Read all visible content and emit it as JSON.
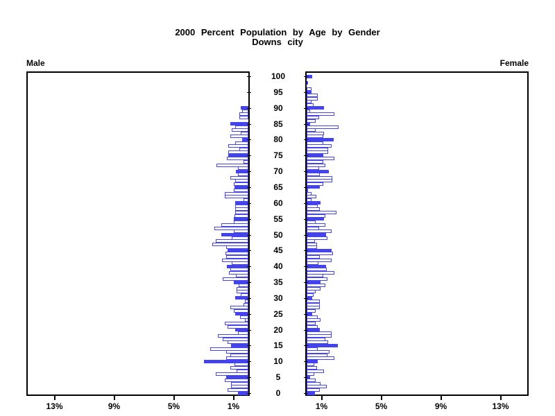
{
  "title": {
    "line1": "2000 Percent Population by Age by Gender",
    "line2": "Downs city"
  },
  "labels": {
    "male": "Male",
    "female": "Female"
  },
  "axis": {
    "x_ticks": [
      1,
      5,
      9,
      13
    ],
    "x_tick_suffix": "%",
    "x_max_percent": 15,
    "age_ticks": [
      0,
      5,
      10,
      15,
      20,
      25,
      30,
      35,
      40,
      45,
      50,
      55,
      60,
      65,
      70,
      75,
      80,
      85,
      90,
      95,
      100
    ]
  },
  "colors": {
    "bar_accent": "#4444ee",
    "frame": "#000000",
    "background": "#ffffff",
    "text": "#000000"
  },
  "chart_data": {
    "type": "bar",
    "subtype": "population-pyramid",
    "title": "2000 Percent Population by Age by Gender",
    "subtitle": "Downs city",
    "units": "percent of total population",
    "age_start": 0,
    "age_step": 1,
    "age_end": 100,
    "filled_bar_rule": "ages divisible by 5 are solid blue; other ages are white with blue outline",
    "xlim": [
      0,
      15
    ],
    "x_tick_values_percent": [
      1,
      5,
      9,
      13
    ],
    "legend_position": "none",
    "grid": false,
    "series": [
      {
        "name": "Male",
        "side": "left",
        "values": [
          0.7,
          1.4,
          1.15,
          1.15,
          1.6,
          1.5,
          2.2,
          0.8,
          1.2,
          0.95,
          3.0,
          1.5,
          1.2,
          1.5,
          2.55,
          1.15,
          1.4,
          1.7,
          2.05,
          0.7,
          0.9,
          1.4,
          1.6,
          0.25,
          0.55,
          0.9,
          1.0,
          1.2,
          0.35,
          0.25,
          0.9,
          0.5,
          0.8,
          0.8,
          0.65,
          1.0,
          1.7,
          0.85,
          1.3,
          1.2,
          1.45,
          1.1,
          1.75,
          1.5,
          1.55,
          1.4,
          1.5,
          2.4,
          2.2,
          1.1,
          1.8,
          1.0,
          2.3,
          1.8,
          1.0,
          1.0,
          0.95,
          0.9,
          0.9,
          0.9,
          0.9,
          0.35,
          1.6,
          1.6,
          1.0,
          0.95,
          1.0,
          0.9,
          1.2,
          0.7,
          0.85,
          0.7,
          2.15,
          0.35,
          1.45,
          1.35,
          1.35,
          0.6,
          1.35,
          0.9,
          0.4,
          1.2,
          0.5,
          1.1,
          0.9,
          1.2,
          0.0,
          0.6,
          0.6,
          0.4,
          0.5,
          0,
          0,
          0,
          0,
          0,
          0,
          0,
          0,
          0,
          0
        ]
      },
      {
        "name": "Female",
        "side": "right",
        "values": [
          0.55,
          0.9,
          1.35,
          0.95,
          0.6,
          0.25,
          0.5,
          1.15,
          0.7,
          0.5,
          0.75,
          1.85,
          1.4,
          1.55,
          0.75,
          2.1,
          1.45,
          1.25,
          1.65,
          1.65,
          0.9,
          0.75,
          0.6,
          0.95,
          0.75,
          0.35,
          0.6,
          0.9,
          0.9,
          0.9,
          0.35,
          0.45,
          0.6,
          0.95,
          1.25,
          0.95,
          1.4,
          1.1,
          1.85,
          1.35,
          1.3,
          0.8,
          1.65,
          0.9,
          1.75,
          1.65,
          0.7,
          0.7,
          0.55,
          1.4,
          1.3,
          1.65,
          0.85,
          1.25,
          0.6,
          1.15,
          1.25,
          2.0,
          0.9,
          0.75,
          0.95,
          0.3,
          0.65,
          0.3,
          0.1,
          0.9,
          1.1,
          1.7,
          1.7,
          0.9,
          1.5,
          0.85,
          1.25,
          1.1,
          1.85,
          1.1,
          1.45,
          1.45,
          1.65,
          1.1,
          1.8,
          1.1,
          1.15,
          0.6,
          2.15,
          0.25,
          0.6,
          0.85,
          1.85,
          0.25,
          1.15,
          0.45,
          0.3,
          0.75,
          0.75,
          0.3,
          0.3,
          0.0,
          0.1,
          0.0,
          0.35
        ]
      }
    ]
  }
}
